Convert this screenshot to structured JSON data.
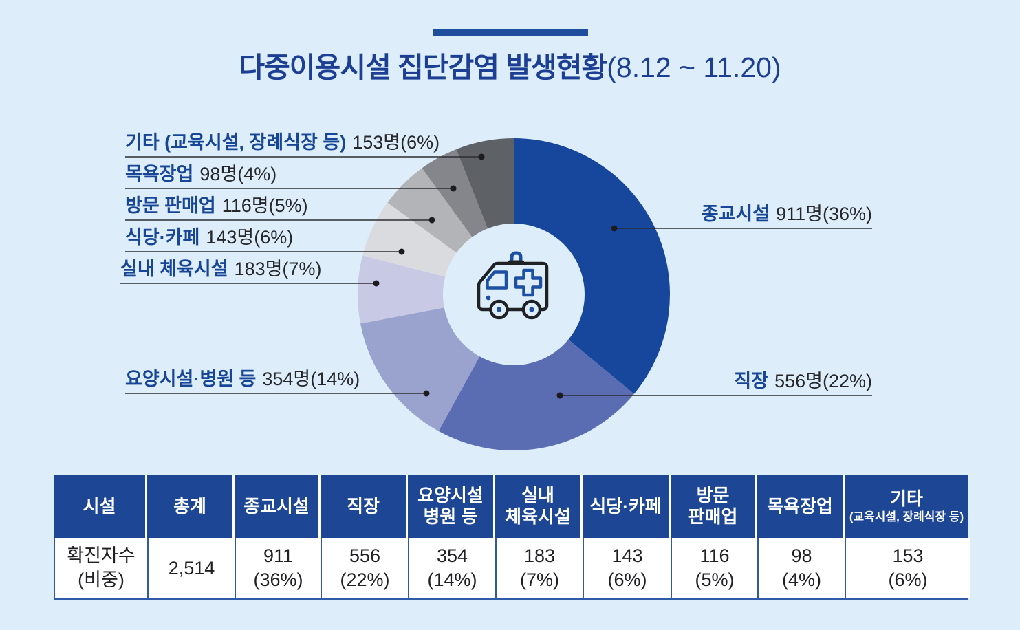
{
  "title": {
    "main": "다중이용시설 집단감염 발생현황",
    "period": "(8.12 ~ 11.20)"
  },
  "chart_data": {
    "type": "donut",
    "title": "다중이용시설 집단감염 발생현황(8.12 ~ 11.20)",
    "unit": "명",
    "total": 2514,
    "start_angle_deg": 0,
    "direction": "clockwise",
    "center_icon": "ambulance",
    "segments": [
      {
        "label": "종교시설",
        "value": 911,
        "percent": 36,
        "color": "#16479d"
      },
      {
        "label": "직장",
        "value": 556,
        "percent": 22,
        "color": "#5a6cb2"
      },
      {
        "label": "요양시설·병원 등",
        "value": 354,
        "percent": 14,
        "color": "#9aa2ce"
      },
      {
        "label": "실내 체육시설",
        "value": 183,
        "percent": 7,
        "color": "#c8c9e5"
      },
      {
        "label": "식당·카페",
        "value": 143,
        "percent": 6,
        "color": "#dadbde"
      },
      {
        "label": "방문 판매업",
        "value": 116,
        "percent": 5,
        "color": "#b3b4b7"
      },
      {
        "label": "목욕장업",
        "value": 98,
        "percent": 4,
        "color": "#84868b"
      },
      {
        "label": "기타 (교육시설, 장례식장 등)",
        "value": 153,
        "percent": 6,
        "color": "#5e6166"
      }
    ]
  },
  "callouts": [
    {
      "name": "기타 (교육시설, 장례식장 등)",
      "value_text": "153명(6%)"
    },
    {
      "name": "목욕장업",
      "value_text": "98명(4%)"
    },
    {
      "name": "방문 판매업",
      "value_text": "116명(5%)"
    },
    {
      "name": "식당·카페",
      "value_text": "143명(6%)"
    },
    {
      "name": "실내 체육시설",
      "value_text": "183명(7%)"
    },
    {
      "name": "요양시설·병원 등",
      "value_text": "354명(14%)"
    },
    {
      "name": "종교시설",
      "value_text": "911명(36%)"
    },
    {
      "name": "직장",
      "value_text": "556명(22%)"
    }
  ],
  "table": {
    "columns": [
      {
        "h1": "시설",
        "h2": "",
        "h2_small": false,
        "v1": "확진자수",
        "v2": "(비중)"
      },
      {
        "h1": "총계",
        "h2": "",
        "h2_small": false,
        "v1": "2,514",
        "v2": ""
      },
      {
        "h1": "종교시설",
        "h2": "",
        "h2_small": false,
        "v1": "911",
        "v2": "(36%)"
      },
      {
        "h1": "직장",
        "h2": "",
        "h2_small": false,
        "v1": "556",
        "v2": "(22%)"
      },
      {
        "h1": "요양시설",
        "h2": "병원 등",
        "h2_small": false,
        "v1": "354",
        "v2": "(14%)"
      },
      {
        "h1": "실내",
        "h2": "체육시설",
        "h2_small": false,
        "v1": "183",
        "v2": "(7%)"
      },
      {
        "h1": "식당·카페",
        "h2": "",
        "h2_small": false,
        "v1": "143",
        "v2": "(6%)"
      },
      {
        "h1": "방문",
        "h2": "판매업",
        "h2_small": false,
        "v1": "116",
        "v2": "(5%)"
      },
      {
        "h1": "목욕장업",
        "h2": "",
        "h2_small": false,
        "v1": "98",
        "v2": "(4%)"
      },
      {
        "h1": "기타",
        "h2": "(교육시설, 장례식장 등)",
        "h2_small": true,
        "v1": "153",
        "v2": "(6%)"
      }
    ]
  },
  "colors": {
    "background": "#ddeefa",
    "brand_blue": "#1c3f94",
    "table_header": "#1d4795",
    "table_border": "#2e5aa8",
    "leader_line": "#2d2d30"
  }
}
